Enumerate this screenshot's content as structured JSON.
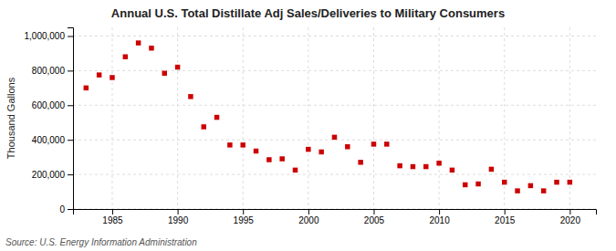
{
  "chart_data": {
    "type": "scatter",
    "title": "Annual U.S. Total Distillate Adj Sales/Deliveries to Military Consumers",
    "ylabel": "Thousand Gallons",
    "source": "Source: U.S. Energy Information Administration",
    "color": "#cc0000",
    "marker": "square",
    "grid": true,
    "x": [
      1983,
      1984,
      1985,
      1986,
      1987,
      1988,
      1989,
      1990,
      1991,
      1992,
      1993,
      1994,
      1995,
      1996,
      1997,
      1998,
      1999,
      2000,
      2001,
      2002,
      2003,
      2004,
      2005,
      2006,
      2007,
      2008,
      2009,
      2010,
      2011,
      2012,
      2013,
      2014,
      2015,
      2016,
      2017,
      2018,
      2019,
      2020
    ],
    "values": [
      700000,
      775000,
      760000,
      880000,
      960000,
      930000,
      785000,
      820000,
      650000,
      475000,
      530000,
      370000,
      370000,
      335000,
      285000,
      290000,
      225000,
      345000,
      330000,
      415000,
      360000,
      270000,
      375000,
      375000,
      250000,
      245000,
      245000,
      265000,
      225000,
      140000,
      145000,
      230000,
      155000,
      105000,
      135000,
      105000,
      155000,
      155000
    ],
    "xlim": [
      1982,
      2022
    ],
    "ylim": [
      0,
      1050000
    ],
    "xticks": [
      1985,
      1990,
      1995,
      2000,
      2005,
      2010,
      2015,
      2020
    ],
    "yticks": [
      0,
      {
        "value": 200000,
        "label": "200,000"
      },
      {
        "value": 400000,
        "label": "400,000"
      },
      {
        "value": 600000,
        "label": "600,000"
      },
      {
        "value": 800000,
        "label": "800,000"
      },
      {
        "value": 1000000,
        "label": "1,000,000"
      }
    ]
  }
}
